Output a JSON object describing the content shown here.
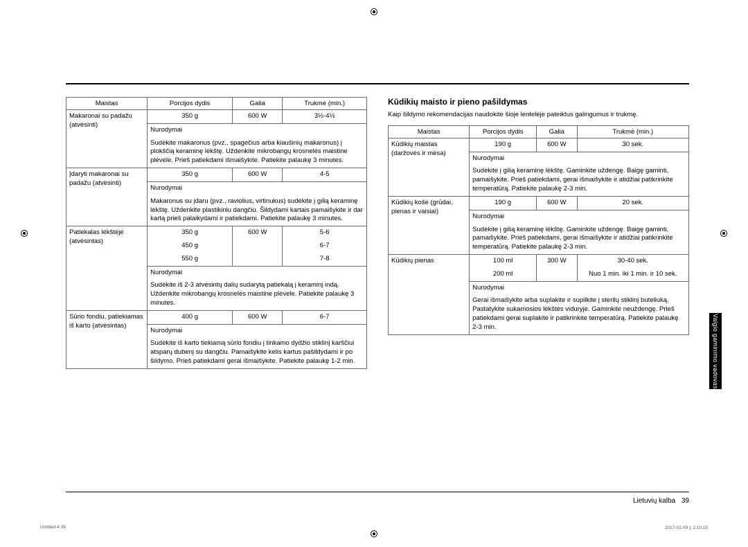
{
  "headers": {
    "food": "Maistas",
    "portion": "Porcijos dydis",
    "power": "Galia",
    "time": "Trukmė (min.)",
    "instructions": "Nurodymai"
  },
  "left_table": [
    {
      "food": "Makaronai su padažu (atvėsinti)",
      "portion": "350 g",
      "power": "600 W",
      "time": "3½-4½",
      "instructions": "Sudėkite makaronus (pvz., spagečius arba kiaušinių makaronus) į plokščią keraminę lėkštę. Uždenkite mikrobangų krosnelės maistine plėvele. Prieš patiekdami išmaišykite. Patiekite palaukę 3 minutes."
    },
    {
      "food": "Įdaryti makaronai su padažu (atvėsinti)",
      "portion": "350 g",
      "power": "600 W",
      "time": "4-5",
      "instructions": "Makaronus su įdaru (pvz., raviolius, virtinukus) sudėkite į gilią keraminę lėkštę. Uždenkite plastikiniu dangčiu. Šildydami kartais pamaišykite ir dar kartą prieš palaikydami ir patiekdami. Patiekite palaukę 3 minutes."
    },
    {
      "food": "Patiekalas lėkštėje (atvėsintas)",
      "portion": "350 g\n450 g\n550 g",
      "power": "600 W",
      "time": "5-6\n6-7\n7-8",
      "instructions": "Sudėkite iš 2-3 atvėsintų dalių sudarytą patiekalą į keraminį indą. Uždenkite mikrobangų krosnelės maistine plėvele. Patiekite palaukę 3 minutes."
    },
    {
      "food": "Sūrio fondiu, patiekiamas iš karto (atvėsintas)",
      "portion": "400 g",
      "power": "600 W",
      "time": "6-7",
      "instructions": "Sudėkite iš karto tiekiamą sūrio fondiu į tinkamo dydžio stiklinį karščiui atsparų dubenį su dangčiu. Pamaišykite kelis kartus pašildydami ir po šildymo. Prieš patiekdami gerai išmaišykite. Patiekite palaukę 1-2 min."
    }
  ],
  "right_section": {
    "title": "Kūdikių maisto ir pieno pašildymas",
    "intro": "Kaip šildymo rekomendacijas naudokite šioje lentelėje pateiktus galingumus ir trukmę."
  },
  "right_table": [
    {
      "food": "Kūdikių maistas (daržovės ir mėsa)",
      "portion": "190 g",
      "power": "600 W",
      "time": "30 sek.",
      "instructions": "Sudėkite į gilią keraminę lėkštę. Gaminkite uždengę. Baigę gaminti, pamaišykite. Prieš patiekdami, gerai išmaišykite ir atidžiai patikrinkite temperatūrą. Patiekite palaukę 2-3 min."
    },
    {
      "food": "Kūdikių košė (grūdai, pienas ir vaisiai)",
      "portion": "190 g",
      "power": "600 W",
      "time": "20 sek.",
      "instructions": "Sudėkite į gilią keraminę lėkštę. Gaminkite uždengę. Baigę gaminti, pamaišykite. Prieš patiekdami, gerai išmaišykite ir atidžiai patikrinkite temperatūrą. Patiekite palaukę 2-3 min."
    },
    {
      "food": "Kūdikių pienas",
      "portion": "100 ml\n200 ml",
      "power": "300 W",
      "time": "30-40 sek.\nNuo 1 min. iki 1 min. ir 10 sek.",
      "instructions": "Gerai išmaišykite arba suplakite ir supilkite į sterilų stiklinį buteliuką. Pastatykite sukamosios lėkštės viduryje. Gaminkite neuždengę. Prieš patiekdami gerai suplakite ir patikrinkite temperatūrą. Patiekite palaukę 2-3 min."
    }
  ],
  "side_tab": "Valgio gaminimo vadovas",
  "footer_lang": "Lietuvių kalba",
  "footer_page": "39",
  "tiny_left": "Untitled-4   39",
  "tiny_right": "2017-01-09   ▯ 2:10:15"
}
